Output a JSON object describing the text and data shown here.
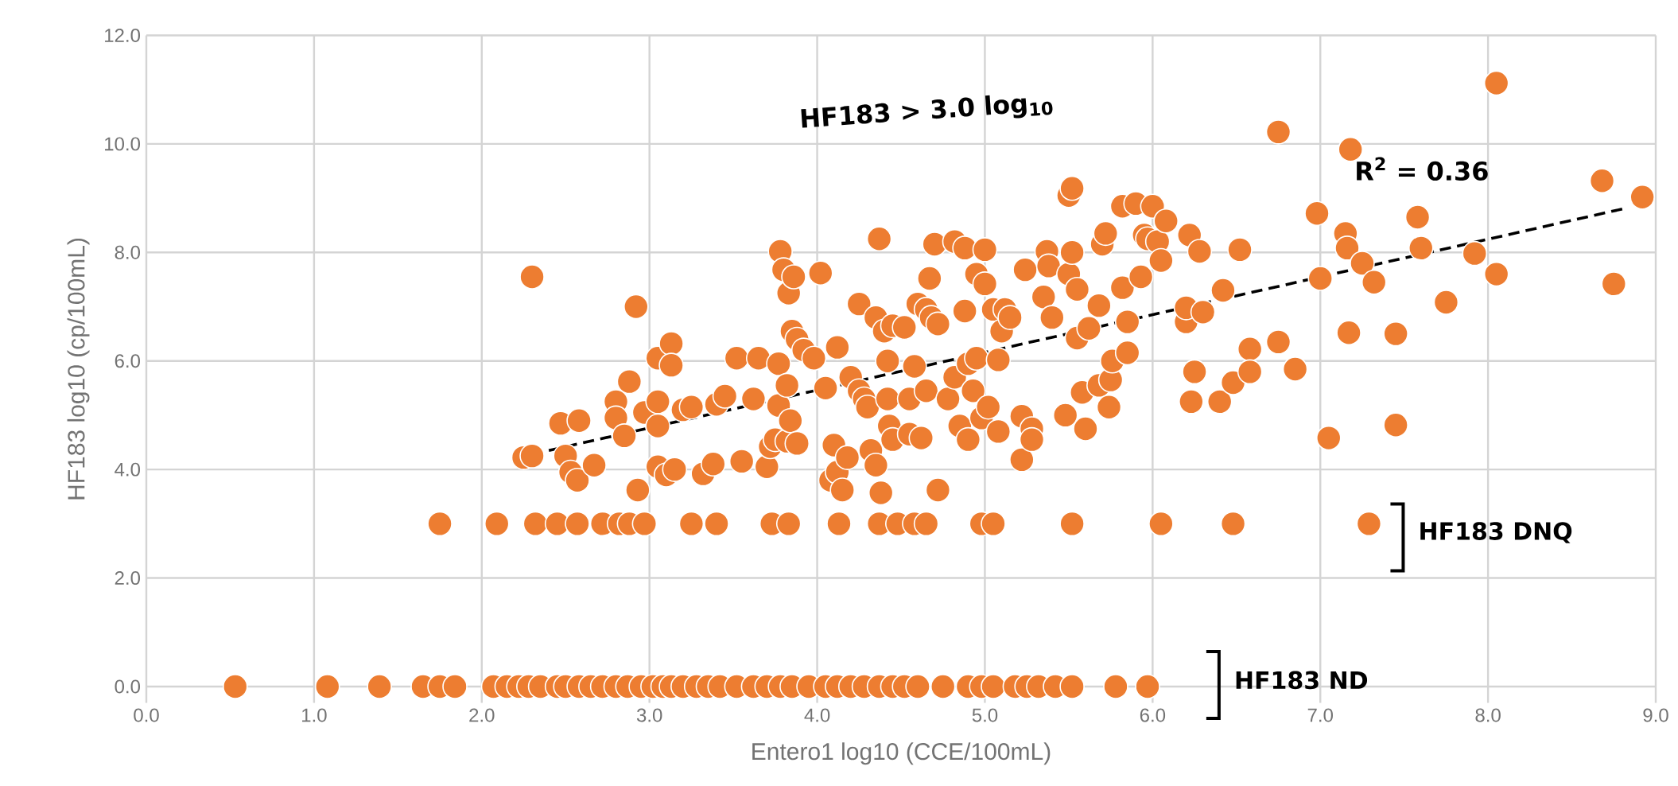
{
  "chart_data": {
    "type": "scatter",
    "xlabel": "Entero1 log10 (CCE/100mL)",
    "ylabel": "HF183 log10 (cp/100mL)",
    "xlim": [
      0,
      9
    ],
    "ylim": [
      -0.3,
      12
    ],
    "xticks": [
      {
        "value": 0,
        "label": "0.0"
      },
      {
        "value": 1,
        "label": "1.0"
      },
      {
        "value": 2,
        "label": "2.0"
      },
      {
        "value": 3,
        "label": "3.0"
      },
      {
        "value": 4,
        "label": "4.0"
      },
      {
        "value": 5,
        "label": "5.0"
      },
      {
        "value": 6,
        "label": "6.0"
      },
      {
        "value": 7,
        "label": "7.0"
      },
      {
        "value": 8,
        "label": "8.0"
      },
      {
        "value": 9,
        "label": "9.0"
      }
    ],
    "yticks": [
      {
        "value": 0,
        "label": "0.0"
      },
      {
        "value": 2,
        "label": "2.0"
      },
      {
        "value": 4,
        "label": "4.0"
      },
      {
        "value": 6,
        "label": "6.0"
      },
      {
        "value": 8,
        "label": "8.0"
      },
      {
        "value": 10,
        "label": "10.0"
      },
      {
        "value": 12,
        "label": "12.0"
      }
    ],
    "grid": true,
    "series": [
      {
        "color": "#ed7d31",
        "marker": "circle",
        "x": [
          0.53,
          1.08,
          1.39,
          1.65,
          1.75,
          1.84,
          2.07,
          2.15,
          2.22,
          2.28,
          2.35,
          2.45,
          2.5,
          2.58,
          2.65,
          2.72,
          2.8,
          2.87,
          2.95,
          3.02,
          3.08,
          3.13,
          3.2,
          3.28,
          3.35,
          3.42,
          3.52,
          3.62,
          3.7,
          3.78,
          3.85,
          3.95,
          4.05,
          4.12,
          4.2,
          4.28,
          4.37,
          4.45,
          4.52,
          4.6,
          4.75,
          4.9,
          4.98,
          5.05,
          5.18,
          5.25,
          5.32,
          5.42,
          5.52,
          5.78,
          5.97,
          1.75,
          2.09,
          2.32,
          2.45,
          2.57,
          2.72,
          2.82,
          2.88,
          2.97,
          3.25,
          3.4,
          3.73,
          3.83,
          4.13,
          4.37,
          4.48,
          4.58,
          4.65,
          4.98,
          5.05,
          5.52,
          6.05,
          6.48,
          7.29,
          2.25,
          2.3,
          2.3,
          2.47,
          2.5,
          2.53,
          2.57,
          2.58,
          2.67,
          2.8,
          2.8,
          2.85,
          2.88,
          2.92,
          2.93,
          2.97,
          3.05,
          3.05,
          3.05,
          3.05,
          3.1,
          3.13,
          3.13,
          3.15,
          3.2,
          3.25,
          3.32,
          3.38,
          3.4,
          3.45,
          3.52,
          3.55,
          3.62,
          3.65,
          3.7,
          3.72,
          3.75,
          3.77,
          3.77,
          3.78,
          3.8,
          3.82,
          3.82,
          3.83,
          3.84,
          3.86,
          3.85,
          3.88,
          3.88,
          3.92,
          3.98,
          4.02,
          4.05,
          4.08,
          4.1,
          4.12,
          4.12,
          4.15,
          4.18,
          4.2,
          4.25,
          4.25,
          4.28,
          4.3,
          4.32,
          4.35,
          4.35,
          4.37,
          4.38,
          4.4,
          4.42,
          4.42,
          4.43,
          4.45,
          4.45,
          4.52,
          4.55,
          4.55,
          4.58,
          4.6,
          4.62,
          4.65,
          4.65,
          4.67,
          4.68,
          4.7,
          4.72,
          4.72,
          4.78,
          4.82,
          4.82,
          4.85,
          4.88,
          4.88,
          4.9,
          4.9,
          4.93,
          4.95,
          4.95,
          4.98,
          5.0,
          5.0,
          5.02,
          5.05,
          5.08,
          5.08,
          5.1,
          5.12,
          5.15,
          5.22,
          5.22,
          5.24,
          5.28,
          5.28,
          5.35,
          5.37,
          5.38,
          5.4,
          5.48,
          5.5,
          5.5,
          5.52,
          5.52,
          5.55,
          5.55,
          5.58,
          5.6,
          5.62,
          5.68,
          5.68,
          5.7,
          5.72,
          5.74,
          5.75,
          5.76,
          5.82,
          5.82,
          5.85,
          5.85,
          5.9,
          5.93,
          5.95,
          5.97,
          6.0,
          6.03,
          6.05,
          6.08,
          6.2,
          6.2,
          6.22,
          6.23,
          6.25,
          6.28,
          6.3,
          6.4,
          6.42,
          6.48,
          6.52,
          6.58,
          6.58,
          6.75,
          6.75,
          6.85,
          6.98,
          7.0,
          7.05,
          7.15,
          7.16,
          7.17,
          7.18,
          7.25,
          7.32,
          7.45,
          7.45,
          7.58,
          7.6,
          7.75,
          7.92,
          8.05,
          8.05,
          8.68,
          8.75,
          8.92
        ],
        "values": [
          0,
          0,
          0,
          0,
          0,
          0,
          0,
          0,
          0,
          0,
          0,
          0,
          0,
          0,
          0,
          0,
          0,
          0,
          0,
          0,
          0,
          0,
          0,
          0,
          0,
          0,
          0,
          0,
          0,
          0,
          0,
          0,
          0,
          0,
          0,
          0,
          0,
          0,
          0,
          0,
          0,
          0,
          0,
          0,
          0,
          0,
          0,
          0,
          0,
          0,
          0,
          3,
          3,
          3,
          3,
          3,
          3,
          3,
          3,
          3,
          3,
          3,
          3,
          3,
          3,
          3,
          3,
          3,
          3,
          3,
          3,
          3,
          3,
          3,
          3,
          4.22,
          4.25,
          7.55,
          4.85,
          4.25,
          3.95,
          3.8,
          4.9,
          4.08,
          5.25,
          4.95,
          4.62,
          5.62,
          7.0,
          3.62,
          5.05,
          6.05,
          5.25,
          4.05,
          4.8,
          3.9,
          6.32,
          5.92,
          4.0,
          5.1,
          5.15,
          3.92,
          4.1,
          5.2,
          5.35,
          6.05,
          4.15,
          5.3,
          6.05,
          4.05,
          4.42,
          4.55,
          5.95,
          5.18,
          8.02,
          7.68,
          5.55,
          4.52,
          7.25,
          4.9,
          7.55,
          6.55,
          6.4,
          4.48,
          6.2,
          6.05,
          7.62,
          5.5,
          3.8,
          4.45,
          6.25,
          3.95,
          3.62,
          4.22,
          5.7,
          7.05,
          5.45,
          5.3,
          5.15,
          4.35,
          4.08,
          6.8,
          8.25,
          3.57,
          6.55,
          6.0,
          5.3,
          4.8,
          4.55,
          6.65,
          6.62,
          5.3,
          4.65,
          5.9,
          7.05,
          4.58,
          6.95,
          5.45,
          7.52,
          6.8,
          8.15,
          6.68,
          3.62,
          5.3,
          5.7,
          8.2,
          4.8,
          6.92,
          8.08,
          5.95,
          4.55,
          5.45,
          6.05,
          7.6,
          4.95,
          8.05,
          7.42,
          5.15,
          6.95,
          6.02,
          4.7,
          6.55,
          6.95,
          6.8,
          4.98,
          4.18,
          7.68,
          4.75,
          4.55,
          7.18,
          8.02,
          7.75,
          6.8,
          5.0,
          7.6,
          9.05,
          9.18,
          8.0,
          7.32,
          6.42,
          5.42,
          4.75,
          6.6,
          7.02,
          5.55,
          8.15,
          8.35,
          5.15,
          5.65,
          6.0,
          8.85,
          7.35,
          6.72,
          6.15,
          8.9,
          7.55,
          8.32,
          8.25,
          8.85,
          8.2,
          7.85,
          8.58,
          6.72,
          6.98,
          8.32,
          5.25,
          5.8,
          8.02,
          6.9,
          5.25,
          7.3,
          5.6,
          8.05,
          6.22,
          5.8,
          10.22,
          6.35,
          5.85,
          8.72,
          7.52,
          4.58,
          8.35,
          8.08,
          6.52,
          9.9,
          7.8,
          7.45,
          6.5,
          4.82,
          8.65,
          8.08,
          7.08,
          7.98,
          11.12,
          7.6,
          9.32,
          7.42,
          9.02
        ]
      },
      {
        "type": "line",
        "color": "#000000",
        "line_style": "dashed",
        "marker": "none",
        "x": [
          2.4,
          8.8
        ],
        "values": [
          4.35,
          8.8
        ]
      }
    ],
    "annotations": [
      "HF183 > 3.0 log$_{10}$",
      "R$^{2}$  = 0.36",
      "HF183 DNQ",
      "HF183 ND"
    ]
  }
}
